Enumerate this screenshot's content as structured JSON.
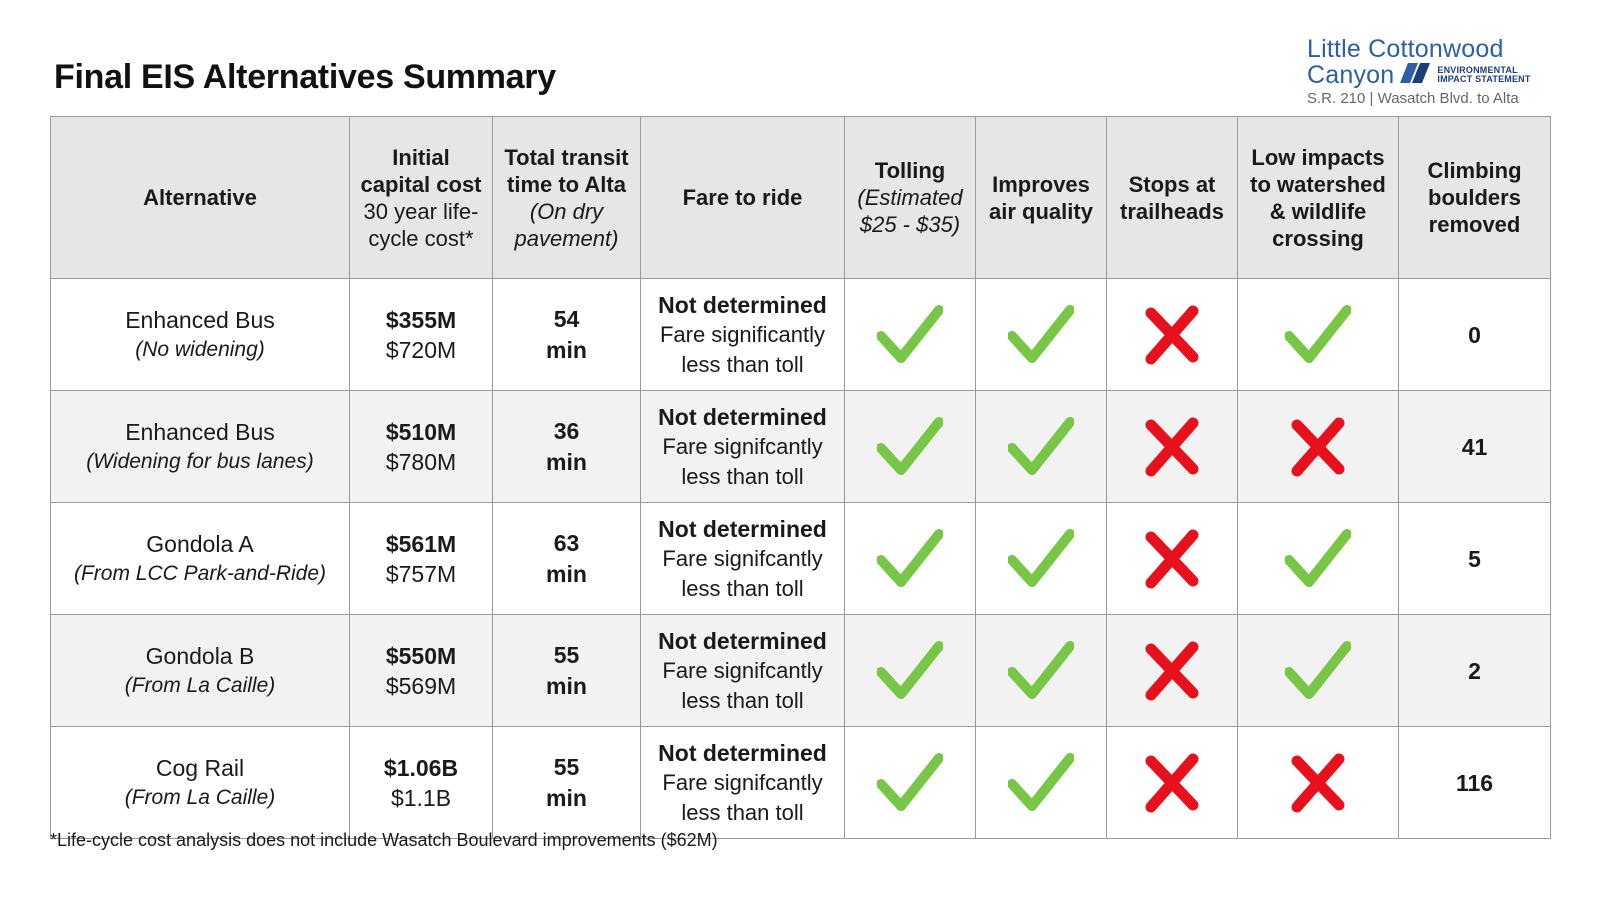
{
  "title": "Final EIS Alternatives Summary",
  "logo": {
    "line1": "Little Cottonwood",
    "line2": "Canyon",
    "eis_line1": "ENVIRONMENTAL",
    "eis_line2": "IMPACT STATEMENT",
    "subtitle": "S.R. 210 | Wasatch Blvd. to Alta",
    "color": "#2e5ea3"
  },
  "headers": {
    "alternative": "Alternative",
    "cost_line1": "Initial",
    "cost_line2": "capital cost",
    "cost_line3": "30 year life-",
    "cost_line4": "cycle cost*",
    "time_line1": "Total transit",
    "time_line2": "time to Alta",
    "time_line3": "(On dry",
    "time_line4": "pavement)",
    "fare": "Fare to ride",
    "tolling_line1": "Tolling",
    "tolling_line2": "(Estimated",
    "tolling_line3": "$25 - $35)",
    "air_line1": "Improves",
    "air_line2": "air quality",
    "stops_line1": "Stops at",
    "stops_line2": "trailheads",
    "watershed_line1": "Low impacts",
    "watershed_line2": "to watershed",
    "watershed_line3": "& wildlife",
    "watershed_line4": "crossing",
    "boulders_line1": "Climbing",
    "boulders_line2": "boulders",
    "boulders_line3": "removed"
  },
  "rows": [
    {
      "name": "Enhanced Bus",
      "note": "(No widening)",
      "capital": "$355M",
      "lifecycle": "$720M",
      "time": "54",
      "time_unit": "min",
      "fare_main": "Not determined",
      "fare_l1": "Fare significantly",
      "fare_l2": "less than toll",
      "tolling": "check",
      "air": "check",
      "stops": "cross",
      "watershed": "check",
      "boulders": "0"
    },
    {
      "name": "Enhanced Bus",
      "note": "(Widening for bus lanes)",
      "capital": "$510M",
      "lifecycle": "$780M",
      "time": "36",
      "time_unit": "min",
      "fare_main": "Not determined",
      "fare_l1": "Fare signifcantly",
      "fare_l2": "less than toll",
      "tolling": "check",
      "air": "check",
      "stops": "cross",
      "watershed": "cross",
      "boulders": "41"
    },
    {
      "name": "Gondola A",
      "note": "(From LCC Park-and-Ride)",
      "capital": "$561M",
      "lifecycle": "$757M",
      "time": "63",
      "time_unit": "min",
      "fare_main": "Not determined",
      "fare_l1": "Fare signifcantly",
      "fare_l2": "less than toll",
      "tolling": "check",
      "air": "check",
      "stops": "cross",
      "watershed": "check",
      "boulders": "5"
    },
    {
      "name": "Gondola B",
      "note": "(From La Caille)",
      "capital": "$550M",
      "lifecycle": "$569M",
      "time": "55",
      "time_unit": "min",
      "fare_main": "Not determined",
      "fare_l1": "Fare signifcantly",
      "fare_l2": "less than toll",
      "tolling": "check",
      "air": "check",
      "stops": "cross",
      "watershed": "check",
      "boulders": "2"
    },
    {
      "name": "Cog Rail",
      "note": "(From La Caille)",
      "capital": "$1.06B",
      "lifecycle": "$1.1B",
      "time": "55",
      "time_unit": "min",
      "fare_main": "Not determined",
      "fare_l1": "Fare signifcantly",
      "fare_l2": "less than toll",
      "tolling": "check",
      "air": "check",
      "stops": "cross",
      "watershed": "cross",
      "boulders": "116"
    }
  ],
  "colors": {
    "check": "#79c545",
    "cross": "#e8101c",
    "header_bg": "#e6e6e6",
    "zebra_bg": "#f2f2f2"
  },
  "icons": {
    "check": "check-mark-icon",
    "cross": "x-mark-icon"
  },
  "footnote": "*Life-cycle cost analysis does not include Wasatch Boulevard improvements ($62M)"
}
